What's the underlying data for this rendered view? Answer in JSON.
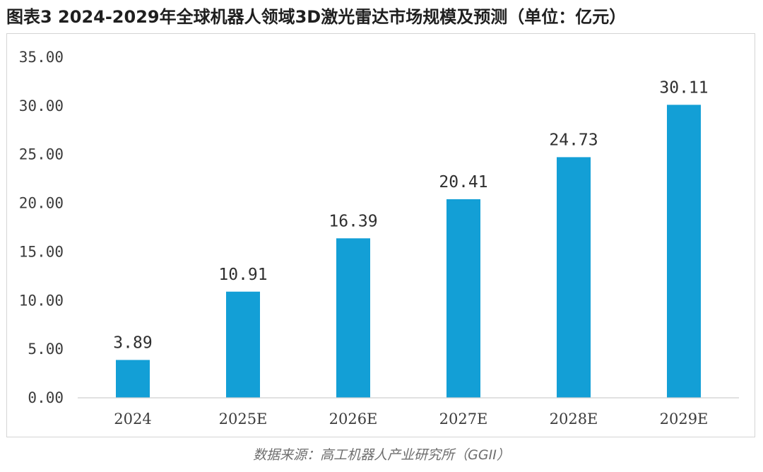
{
  "header": {
    "title": "图表3 2024-2029年全球机器人领域3D激光雷达市场规模及预测（单位：亿元）"
  },
  "footer": {
    "source": "数据来源：高工机器人产业研究所（GGII）"
  },
  "colors": {
    "bar": "#139fd6",
    "axis": "#cfcfcf"
  },
  "chart_data": {
    "type": "bar",
    "title": "图表3 2024-2029年全球机器人领域3D激光雷达市场规模及预测（单位：亿元）",
    "categories": [
      "2024",
      "2025E",
      "2026E",
      "2027E",
      "2028E",
      "2029E"
    ],
    "values": [
      3.89,
      10.91,
      16.39,
      20.41,
      24.73,
      30.11
    ],
    "value_labels": [
      "3.89",
      "10.91",
      "16.39",
      "20.41",
      "24.73",
      "30.11"
    ],
    "y_ticks": [
      "0.00",
      "5.00",
      "10.00",
      "15.00",
      "20.00",
      "25.00",
      "30.00",
      "35.00"
    ],
    "ylim": [
      0,
      35
    ],
    "xlabel": "",
    "ylabel": "",
    "grid": false,
    "legend": "none"
  }
}
